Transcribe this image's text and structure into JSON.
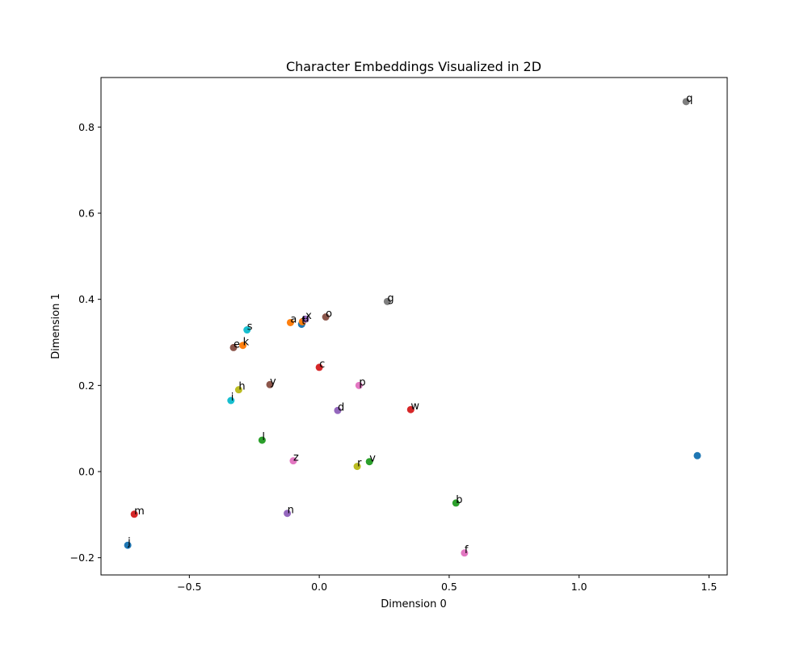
{
  "chart_data": {
    "type": "scatter",
    "title": "Character Embeddings Visualized in 2D",
    "xlabel": "Dimension 0",
    "ylabel": "Dimension 1",
    "xlim": [
      -0.84,
      1.57
    ],
    "ylim": [
      -0.24,
      0.915
    ],
    "xticks": [
      -0.5,
      0.0,
      0.5,
      1.0,
      1.5
    ],
    "xtick_labels": [
      "−0.5",
      "0.0",
      "0.5",
      "1.0",
      "1.5"
    ],
    "yticks": [
      -0.2,
      0.0,
      0.2,
      0.4,
      0.6,
      0.8
    ],
    "ytick_labels": [
      "−0.2",
      "0.0",
      "0.2",
      "0.4",
      "0.6",
      "0.8"
    ],
    "grid": false,
    "legend": "none",
    "points": [
      {
        "label": "",
        "x": 1.455,
        "y": 0.037,
        "color": "#1f77b4"
      },
      {
        "label": "a",
        "x": -0.111,
        "y": 0.346,
        "color": "#ff7f0e"
      },
      {
        "label": "b",
        "x": 0.526,
        "y": -0.073,
        "color": "#2ca02c"
      },
      {
        "label": "c",
        "x": 0.0,
        "y": 0.242,
        "color": "#d62728"
      },
      {
        "label": "d",
        "x": 0.071,
        "y": 0.142,
        "color": "#9467bd"
      },
      {
        "label": "e",
        "x": -0.33,
        "y": 0.288,
        "color": "#8c564b"
      },
      {
        "label": "f",
        "x": 0.559,
        "y": -0.189,
        "color": "#e377c2"
      },
      {
        "label": "g",
        "x": 0.262,
        "y": 0.395,
        "color": "#7f7f7f"
      },
      {
        "label": "h",
        "x": -0.31,
        "y": 0.19,
        "color": "#bcbd22"
      },
      {
        "label": "i",
        "x": -0.34,
        "y": 0.165,
        "color": "#17becf"
      },
      {
        "label": "j",
        "x": -0.737,
        "y": -0.171,
        "color": "#1f77b4"
      },
      {
        "label": "k",
        "x": -0.294,
        "y": 0.293,
        "color": "#ff7f0e"
      },
      {
        "label": "l",
        "x": -0.22,
        "y": 0.073,
        "color": "#2ca02c"
      },
      {
        "label": "m",
        "x": -0.712,
        "y": -0.099,
        "color": "#d62728"
      },
      {
        "label": "n",
        "x": -0.123,
        "y": -0.097,
        "color": "#9467bd"
      },
      {
        "label": "o",
        "x": 0.025,
        "y": 0.359,
        "color": "#8c564b"
      },
      {
        "label": "p",
        "x": 0.153,
        "y": 0.2,
        "color": "#e377c2"
      },
      {
        "label": "q",
        "x": 1.412,
        "y": 0.859,
        "color": "#7f7f7f"
      },
      {
        "label": "r",
        "x": 0.146,
        "y": 0.012,
        "color": "#bcbd22"
      },
      {
        "label": "s",
        "x": -0.278,
        "y": 0.329,
        "color": "#17becf"
      },
      {
        "label": "t",
        "x": -0.068,
        "y": 0.342,
        "color": "#1f77b4"
      },
      {
        "label": "u",
        "x": -0.065,
        "y": 0.348,
        "color": "#ff7f0e"
      },
      {
        "label": "v",
        "x": 0.193,
        "y": 0.023,
        "color": "#2ca02c"
      },
      {
        "label": "w",
        "x": 0.352,
        "y": 0.144,
        "color": "#d62728"
      },
      {
        "label": "x",
        "x": -0.053,
        "y": 0.354,
        "color": "#9467bd"
      },
      {
        "label": "y",
        "x": -0.19,
        "y": 0.202,
        "color": "#8c564b"
      },
      {
        "label": "z",
        "x": -0.1,
        "y": 0.025,
        "color": "#e377c2"
      }
    ]
  }
}
